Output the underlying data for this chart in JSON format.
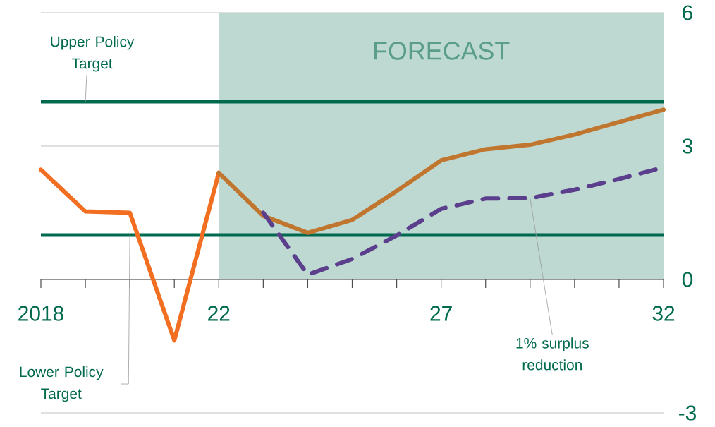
{
  "chart_data": {
    "type": "line",
    "xlim": [
      2018,
      2032
    ],
    "xticks": [
      {
        "value": 2018,
        "label": "2018"
      },
      {
        "value": 2019,
        "label": null
      },
      {
        "value": 2020,
        "label": null
      },
      {
        "value": 2021,
        "label": null
      },
      {
        "value": 2022,
        "label": "22"
      },
      {
        "value": 2023,
        "label": null
      },
      {
        "value": 2024,
        "label": null
      },
      {
        "value": 2025,
        "label": null
      },
      {
        "value": 2026,
        "label": null
      },
      {
        "value": 2027,
        "label": "27"
      },
      {
        "value": 2028,
        "label": null
      },
      {
        "value": 2029,
        "label": null
      },
      {
        "value": 2030,
        "label": null
      },
      {
        "value": 2031,
        "label": null
      },
      {
        "value": 2032,
        "label": "32"
      }
    ],
    "ylim": [
      -3,
      6
    ],
    "yticks": [
      6,
      3,
      0,
      -3
    ],
    "grid": "y",
    "marker": "none",
    "line_style": "solid",
    "bands": [
      {
        "axis": "x",
        "from": 2022,
        "to": 2032,
        "label": "FORECAST",
        "color": "#bed9d2"
      }
    ],
    "ref_lines": [
      {
        "axis": "y",
        "value": 4,
        "label": "Upper Policy Target",
        "color": "#006a4e"
      },
      {
        "axis": "y",
        "value": 1,
        "label": "Lower Policy Target",
        "color": "#006a4e"
      }
    ],
    "series": [
      {
        "color": "#f26f21",
        "x": [
          2018,
          2019,
          2020,
          2021,
          2022
        ],
        "values": [
          2.47,
          1.53,
          1.5,
          -1.37,
          2.4
        ]
      },
      {
        "color": "#c0762e",
        "x": [
          2022,
          2023,
          2024,
          2025,
          2026,
          2027,
          2028,
          2029,
          2030,
          2031,
          2032
        ],
        "values": [
          2.4,
          1.43,
          1.05,
          1.34,
          1.99,
          2.68,
          2.93,
          3.03,
          3.26,
          3.54,
          3.82
        ]
      },
      {
        "name": "1% surplus reduction",
        "color": "#5b3f8c",
        "line_style": "dashed",
        "x": [
          2023,
          2024,
          2025,
          2026,
          2027,
          2028,
          2029,
          2030,
          2031,
          2032
        ],
        "values": [
          1.5,
          0.11,
          0.46,
          0.99,
          1.59,
          1.82,
          1.83,
          2.02,
          2.26,
          2.52
        ]
      }
    ]
  }
}
